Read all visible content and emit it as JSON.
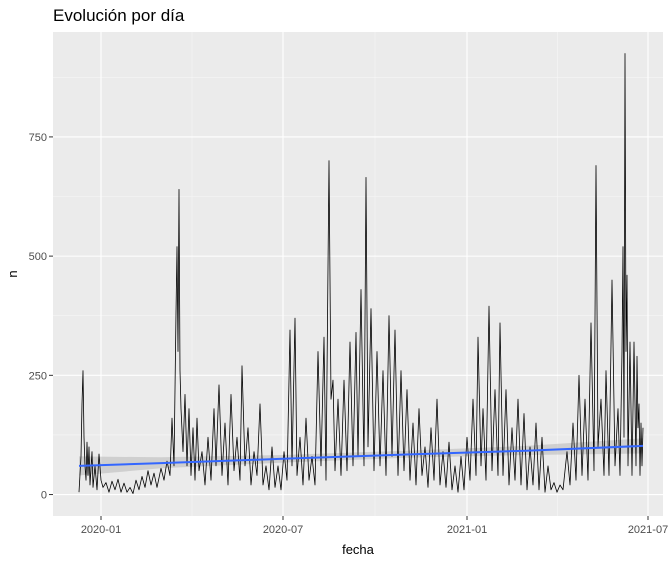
{
  "chart_data": {
    "type": "line",
    "title": "Evolución por día",
    "xlabel": "fecha",
    "ylabel": "n",
    "x_ticks": [
      {
        "label": "2020-01",
        "date": "2020-01-01"
      },
      {
        "label": "2020-07",
        "date": "2020-07-01"
      },
      {
        "label": "2021-01",
        "date": "2021-01-01"
      },
      {
        "label": "2021-07",
        "date": "2021-07-01"
      }
    ],
    "y_ticks": [
      0,
      250,
      500,
      750
    ],
    "xlim": [
      "2019-11-14",
      "2021-07-16"
    ],
    "ylim": [
      -45,
      970
    ],
    "grid": true,
    "background": "#ebebeb",
    "series": [
      {
        "type": "line",
        "color": "#000000",
        "points": [
          [
            "2019-12-10",
            5
          ],
          [
            "2019-12-12",
            80
          ],
          [
            "2019-12-13",
            190
          ],
          [
            "2019-12-14",
            260
          ],
          [
            "2019-12-15",
            120
          ],
          [
            "2019-12-16",
            60
          ],
          [
            "2019-12-17",
            30
          ],
          [
            "2019-12-18",
            110
          ],
          [
            "2019-12-19",
            40
          ],
          [
            "2019-12-20",
            100
          ],
          [
            "2019-12-21",
            20
          ],
          [
            "2019-12-23",
            90
          ],
          [
            "2019-12-24",
            15
          ],
          [
            "2019-12-26",
            60
          ],
          [
            "2019-12-28",
            10
          ],
          [
            "2019-12-30",
            85
          ],
          [
            "2020-01-01",
            30
          ],
          [
            "2020-01-03",
            15
          ],
          [
            "2020-01-06",
            25
          ],
          [
            "2020-01-09",
            5
          ],
          [
            "2020-01-12",
            28
          ],
          [
            "2020-01-15",
            10
          ],
          [
            "2020-01-18",
            32
          ],
          [
            "2020-01-21",
            5
          ],
          [
            "2020-01-24",
            24
          ],
          [
            "2020-01-27",
            5
          ],
          [
            "2020-01-30",
            15
          ],
          [
            "2020-02-02",
            2
          ],
          [
            "2020-02-05",
            30
          ],
          [
            "2020-02-08",
            10
          ],
          [
            "2020-02-11",
            38
          ],
          [
            "2020-02-14",
            15
          ],
          [
            "2020-02-17",
            50
          ],
          [
            "2020-02-20",
            20
          ],
          [
            "2020-02-23",
            45
          ],
          [
            "2020-02-26",
            15
          ],
          [
            "2020-03-01",
            55
          ],
          [
            "2020-03-04",
            30
          ],
          [
            "2020-03-07",
            70
          ],
          [
            "2020-03-10",
            40
          ],
          [
            "2020-03-12",
            160
          ],
          [
            "2020-03-14",
            60
          ],
          [
            "2020-03-16",
            380
          ],
          [
            "2020-03-17",
            520
          ],
          [
            "2020-03-18",
            300
          ],
          [
            "2020-03-19",
            640
          ],
          [
            "2020-03-20",
            260
          ],
          [
            "2020-03-21",
            180
          ],
          [
            "2020-03-23",
            90
          ],
          [
            "2020-03-25",
            210
          ],
          [
            "2020-03-27",
            60
          ],
          [
            "2020-03-29",
            180
          ],
          [
            "2020-03-31",
            40
          ],
          [
            "2020-04-02",
            140
          ],
          [
            "2020-04-04",
            30
          ],
          [
            "2020-04-06",
            160
          ],
          [
            "2020-04-08",
            50
          ],
          [
            "2020-04-11",
            90
          ],
          [
            "2020-04-14",
            20
          ],
          [
            "2020-04-17",
            120
          ],
          [
            "2020-04-20",
            30
          ],
          [
            "2020-04-23",
            180
          ],
          [
            "2020-04-25",
            60
          ],
          [
            "2020-04-28",
            230
          ],
          [
            "2020-05-01",
            40
          ],
          [
            "2020-05-04",
            150
          ],
          [
            "2020-05-07",
            20
          ],
          [
            "2020-05-10",
            210
          ],
          [
            "2020-05-13",
            50
          ],
          [
            "2020-05-16",
            120
          ],
          [
            "2020-05-19",
            30
          ],
          [
            "2020-05-21",
            270
          ],
          [
            "2020-05-24",
            60
          ],
          [
            "2020-05-27",
            140
          ],
          [
            "2020-05-30",
            20
          ],
          [
            "2020-06-02",
            90
          ],
          [
            "2020-06-05",
            40
          ],
          [
            "2020-06-08",
            190
          ],
          [
            "2020-06-11",
            20
          ],
          [
            "2020-06-14",
            60
          ],
          [
            "2020-06-17",
            10
          ],
          [
            "2020-06-20",
            100
          ],
          [
            "2020-06-23",
            15
          ],
          [
            "2020-06-26",
            60
          ],
          [
            "2020-06-29",
            10
          ],
          [
            "2020-07-02",
            90
          ],
          [
            "2020-07-05",
            30
          ],
          [
            "2020-07-08",
            345
          ],
          [
            "2020-07-10",
            60
          ],
          [
            "2020-07-13",
            370
          ],
          [
            "2020-07-15",
            40
          ],
          [
            "2020-07-18",
            120
          ],
          [
            "2020-07-21",
            20
          ],
          [
            "2020-07-24",
            160
          ],
          [
            "2020-07-27",
            30
          ],
          [
            "2020-07-30",
            80
          ],
          [
            "2020-08-02",
            20
          ],
          [
            "2020-08-05",
            300
          ],
          [
            "2020-08-08",
            60
          ],
          [
            "2020-08-11",
            330
          ],
          [
            "2020-08-13",
            30
          ],
          [
            "2020-08-16",
            700
          ],
          [
            "2020-08-18",
            200
          ],
          [
            "2020-08-20",
            240
          ],
          [
            "2020-08-22",
            50
          ],
          [
            "2020-08-25",
            200
          ],
          [
            "2020-08-28",
            40
          ],
          [
            "2020-08-31",
            240
          ],
          [
            "2020-09-03",
            50
          ],
          [
            "2020-09-06",
            320
          ],
          [
            "2020-09-09",
            60
          ],
          [
            "2020-09-12",
            340
          ],
          [
            "2020-09-14",
            80
          ],
          [
            "2020-09-17",
            430
          ],
          [
            "2020-09-20",
            60
          ],
          [
            "2020-09-22",
            665
          ],
          [
            "2020-09-24",
            100
          ],
          [
            "2020-09-27",
            390
          ],
          [
            "2020-09-30",
            50
          ],
          [
            "2020-10-03",
            300
          ],
          [
            "2020-10-06",
            60
          ],
          [
            "2020-10-09",
            260
          ],
          [
            "2020-10-12",
            40
          ],
          [
            "2020-10-15",
            375
          ],
          [
            "2020-10-18",
            80
          ],
          [
            "2020-10-21",
            345
          ],
          [
            "2020-10-24",
            40
          ],
          [
            "2020-10-27",
            260
          ],
          [
            "2020-10-30",
            50
          ],
          [
            "2020-11-02",
            220
          ],
          [
            "2020-11-05",
            30
          ],
          [
            "2020-11-08",
            150
          ],
          [
            "2020-11-11",
            20
          ],
          [
            "2020-11-14",
            180
          ],
          [
            "2020-11-17",
            40
          ],
          [
            "2020-11-20",
            100
          ],
          [
            "2020-11-23",
            15
          ],
          [
            "2020-11-26",
            140
          ],
          [
            "2020-11-29",
            30
          ],
          [
            "2020-12-02",
            200
          ],
          [
            "2020-12-05",
            20
          ],
          [
            "2020-12-08",
            90
          ],
          [
            "2020-12-11",
            15
          ],
          [
            "2020-12-14",
            110
          ],
          [
            "2020-12-17",
            10
          ],
          [
            "2020-12-20",
            60
          ],
          [
            "2020-12-23",
            5
          ],
          [
            "2020-12-26",
            80
          ],
          [
            "2020-12-29",
            10
          ],
          [
            "2021-01-01",
            120
          ],
          [
            "2021-01-04",
            30
          ],
          [
            "2021-01-07",
            200
          ],
          [
            "2021-01-10",
            40
          ],
          [
            "2021-01-12",
            330
          ],
          [
            "2021-01-15",
            60
          ],
          [
            "2021-01-17",
            180
          ],
          [
            "2021-01-20",
            30
          ],
          [
            "2021-01-23",
            395
          ],
          [
            "2021-01-26",
            50
          ],
          [
            "2021-01-29",
            220
          ],
          [
            "2021-02-01",
            40
          ],
          [
            "2021-02-03",
            360
          ],
          [
            "2021-02-06",
            40
          ],
          [
            "2021-02-09",
            220
          ],
          [
            "2021-02-12",
            20
          ],
          [
            "2021-02-15",
            140
          ],
          [
            "2021-02-18",
            30
          ],
          [
            "2021-02-21",
            200
          ],
          [
            "2021-02-24",
            20
          ],
          [
            "2021-02-27",
            170
          ],
          [
            "2021-03-02",
            10
          ],
          [
            "2021-03-05",
            100
          ],
          [
            "2021-03-08",
            20
          ],
          [
            "2021-03-11",
            150
          ],
          [
            "2021-03-14",
            10
          ],
          [
            "2021-03-17",
            120
          ],
          [
            "2021-03-20",
            5
          ],
          [
            "2021-03-23",
            60
          ],
          [
            "2021-03-26",
            10
          ],
          [
            "2021-03-29",
            25
          ],
          [
            "2021-04-01",
            5
          ],
          [
            "2021-04-04",
            20
          ],
          [
            "2021-04-07",
            10
          ],
          [
            "2021-04-11",
            90
          ],
          [
            "2021-04-14",
            20
          ],
          [
            "2021-04-17",
            150
          ],
          [
            "2021-04-20",
            30
          ],
          [
            "2021-04-23",
            250
          ],
          [
            "2021-04-26",
            40
          ],
          [
            "2021-04-29",
            200
          ],
          [
            "2021-05-02",
            30
          ],
          [
            "2021-05-05",
            360
          ],
          [
            "2021-05-08",
            50
          ],
          [
            "2021-05-10",
            690
          ],
          [
            "2021-05-12",
            100
          ],
          [
            "2021-05-15",
            200
          ],
          [
            "2021-05-18",
            40
          ],
          [
            "2021-05-20",
            260
          ],
          [
            "2021-05-23",
            40
          ],
          [
            "2021-05-26",
            450
          ],
          [
            "2021-05-29",
            60
          ],
          [
            "2021-06-01",
            180
          ],
          [
            "2021-06-03",
            40
          ],
          [
            "2021-06-05",
            300
          ],
          [
            "2021-06-06",
            520
          ],
          [
            "2021-06-07",
            120
          ],
          [
            "2021-06-08",
            925
          ],
          [
            "2021-06-09",
            300
          ],
          [
            "2021-06-10",
            460
          ],
          [
            "2021-06-11",
            60
          ],
          [
            "2021-06-13",
            320
          ],
          [
            "2021-06-15",
            40
          ],
          [
            "2021-06-17",
            320
          ],
          [
            "2021-06-19",
            60
          ],
          [
            "2021-06-20",
            290
          ],
          [
            "2021-06-21",
            140
          ],
          [
            "2021-06-22",
            190
          ],
          [
            "2021-06-23",
            40
          ],
          [
            "2021-06-24",
            150
          ],
          [
            "2021-06-25",
            60
          ],
          [
            "2021-06-26",
            140
          ]
        ]
      },
      {
        "type": "smooth",
        "color": "#3366ff",
        "band_color": "#bdbdbd",
        "points": [
          {
            "x": "2019-12-10",
            "y": 60,
            "lo": 40,
            "hi": 80
          },
          {
            "x": "2020-03-01",
            "y": 66,
            "lo": 55,
            "hi": 78
          },
          {
            "x": "2020-07-01",
            "y": 75,
            "lo": 67,
            "hi": 83
          },
          {
            "x": "2020-11-01",
            "y": 84,
            "lo": 77,
            "hi": 92
          },
          {
            "x": "2021-03-01",
            "y": 92,
            "lo": 83,
            "hi": 102
          },
          {
            "x": "2021-06-26",
            "y": 102,
            "lo": 86,
            "hi": 118
          }
        ]
      }
    ]
  }
}
